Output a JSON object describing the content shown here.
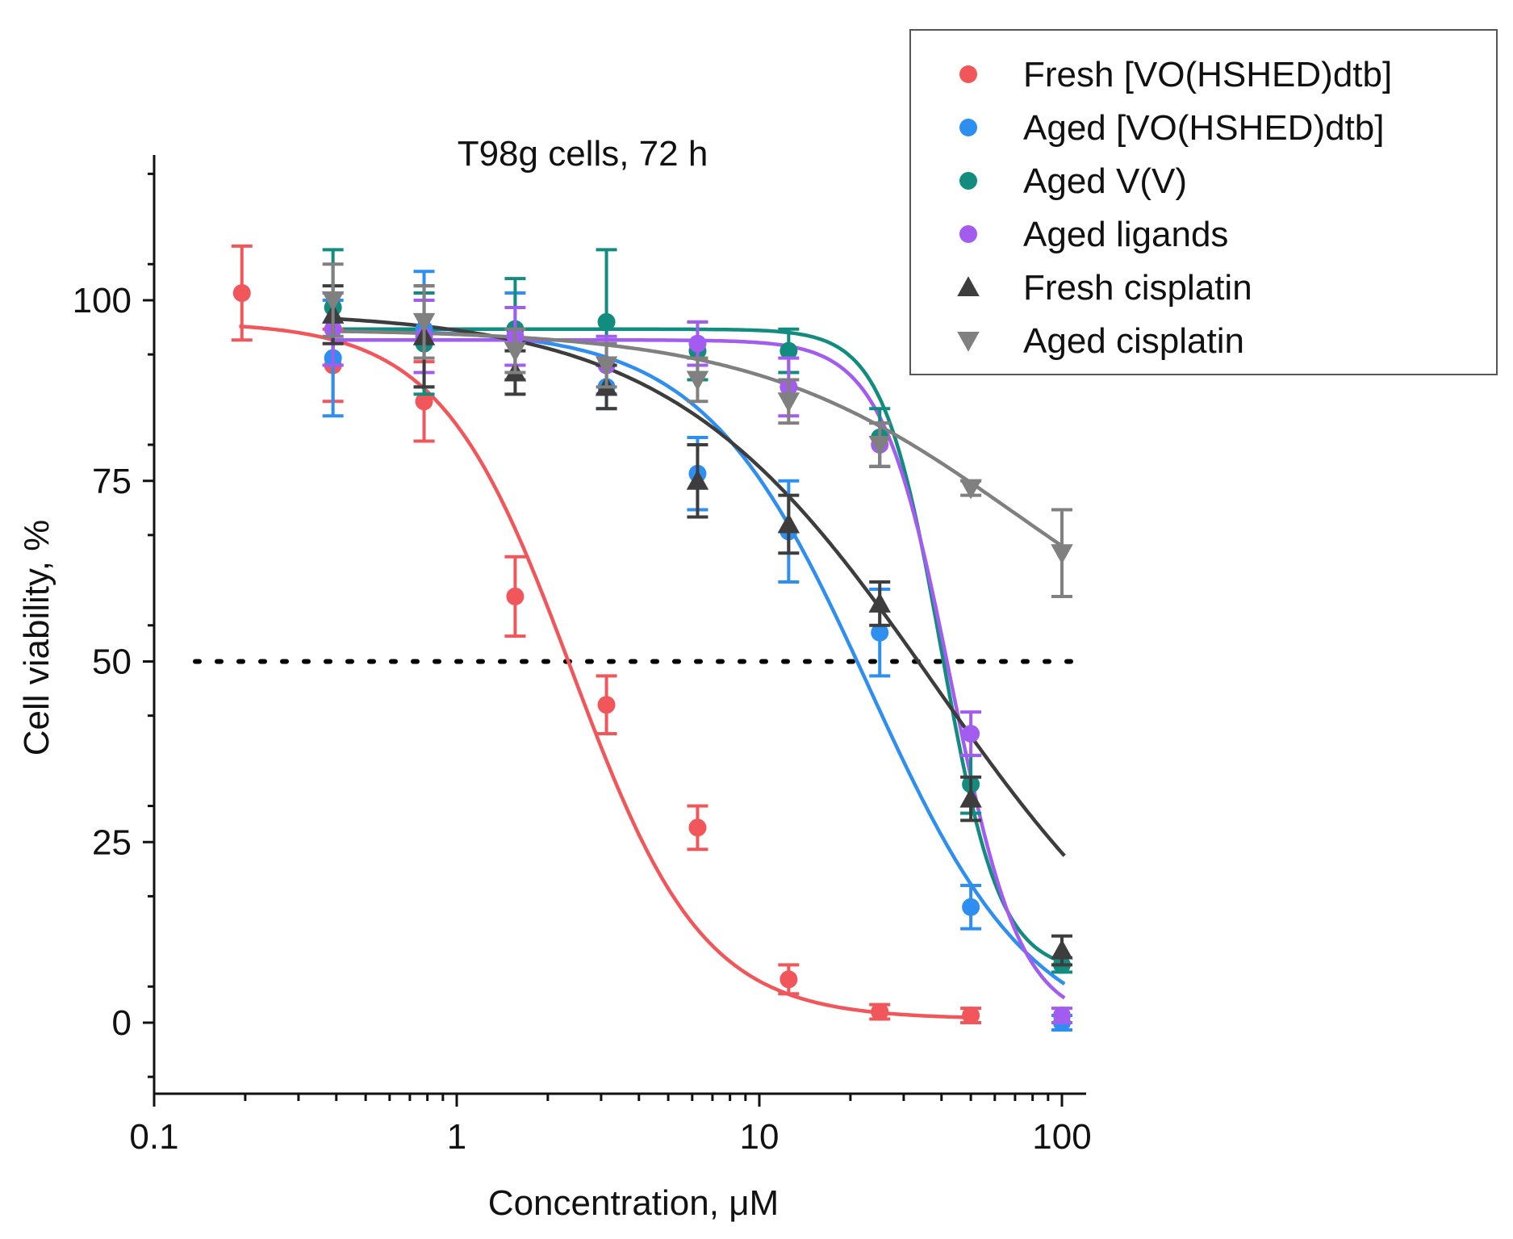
{
  "chart_data": {
    "type": "scatter",
    "title": "T98g cells, 72 h",
    "xlabel": "Concentration, μM",
    "ylabel": "Cell viability, %",
    "xscale": "log",
    "xlim": [
      0.1,
      120
    ],
    "ylim": [
      -10,
      120
    ],
    "xticks": [
      0.1,
      1,
      10,
      100
    ],
    "xtick_labels": [
      "0.1",
      "1",
      "10",
      "100"
    ],
    "yticks": [
      0,
      25,
      50,
      75,
      100
    ],
    "ytick_labels": [
      "0",
      "25",
      "50",
      "75",
      "100"
    ],
    "reference_line": {
      "y": 50,
      "style": "dotted"
    },
    "legend_position": "top-right",
    "series": [
      {
        "name": "Fresh [VO(HSHED)dtb]",
        "color": "#f0565a",
        "marker": "circle",
        "x": [
          0.195,
          0.39,
          0.78,
          1.56,
          3.125,
          6.25,
          12.5,
          25,
          50
        ],
        "y": [
          101,
          91,
          86,
          59,
          44,
          27,
          6,
          1.5,
          1
        ],
        "err": [
          6.5,
          5,
          5.5,
          5.5,
          4,
          3,
          2,
          1,
          1
        ],
        "fit": {
          "top": 97,
          "bottom": 0.5,
          "ic50": 2.4,
          "hill": 2.0
        }
      },
      {
        "name": "Aged [VO(HSHED)dtb]",
        "color": "#2e8ff0",
        "marker": "circle",
        "x": [
          0.39,
          0.78,
          1.56,
          3.125,
          6.25,
          12.5,
          25,
          50,
          100
        ],
        "y": [
          92,
          96,
          96,
          88,
          76,
          68,
          54,
          16,
          0
        ],
        "err": [
          8,
          8,
          5,
          3,
          5,
          7,
          6,
          3,
          1
        ],
        "fit": {
          "top": 96,
          "bottom": -3,
          "ic50": 23,
          "hill": 1.6
        }
      },
      {
        "name": "Aged V(V)",
        "color": "#138c80",
        "marker": "circle",
        "x": [
          0.39,
          0.78,
          1.56,
          3.125,
          6.25,
          12.5,
          25,
          50,
          100
        ],
        "y": [
          99,
          94,
          96,
          97,
          93,
          93,
          81,
          33,
          8
        ],
        "err": [
          8,
          7,
          7,
          10,
          4,
          3,
          4,
          4,
          1
        ],
        "fit": {
          "top": 96,
          "bottom": 7,
          "ic50": 40,
          "hill": 4.5
        }
      },
      {
        "name": "Aged ligands",
        "color": "#a35cf0",
        "marker": "circle",
        "x": [
          0.39,
          0.78,
          1.56,
          3.125,
          6.25,
          12.5,
          25,
          50,
          100
        ],
        "y": [
          96,
          95,
          95,
          91,
          94,
          88,
          80,
          40,
          1
        ],
        "err": [
          5,
          5,
          4,
          4,
          3,
          4,
          3,
          3,
          1
        ],
        "fit": {
          "top": 94.5,
          "bottom": 0,
          "ic50": 43,
          "hill": 3.8
        }
      },
      {
        "name": "Fresh cisplatin",
        "color": "#3d3d3d",
        "marker": "triangle-up",
        "x": [
          0.39,
          0.78,
          1.56,
          3.125,
          6.25,
          12.5,
          25,
          50,
          100
        ],
        "y": [
          98,
          95,
          90,
          88,
          75,
          69,
          58,
          31,
          10
        ],
        "err": [
          4,
          7,
          3,
          3,
          5,
          4,
          3,
          3,
          2
        ],
        "fit": {
          "top": 98.5,
          "bottom": -5,
          "ic50": 38,
          "hill": 1.0
        }
      },
      {
        "name": "Aged cisplatin",
        "color": "#808080",
        "marker": "triangle-down",
        "x": [
          0.39,
          0.78,
          1.56,
          3.125,
          6.25,
          12.5,
          25,
          50,
          100
        ],
        "y": [
          100,
          97,
          93,
          91,
          89,
          86,
          80,
          74,
          65
        ],
        "err": [
          5,
          5,
          3,
          3,
          3,
          3,
          3,
          1,
          6
        ],
        "fit": {
          "top": 96,
          "bottom": 45,
          "ic50": 70,
          "hill": 1.0
        }
      }
    ]
  }
}
